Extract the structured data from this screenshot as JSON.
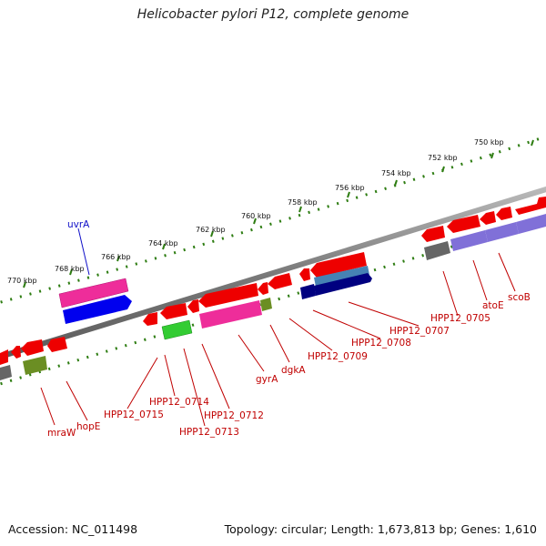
{
  "title": "Helicobacter pylori P12, complete genome",
  "accession": "Accession: NC_011498",
  "summary": "Topology: circular; Length: 1,673,813 bp; Genes: 1,610",
  "ruler_labels": [
    "750 kbp",
    "752 kbp",
    "754 kbp",
    "756 kbp",
    "758 kbp",
    "760 kbp",
    "762 kbp",
    "764 kbp",
    "766 kbp",
    "768 kbp",
    "770 kbp"
  ],
  "gene_labels": [
    "uvrA",
    "HPP12_0705",
    "atoE",
    "scoB",
    "HPP12_0707",
    "HPP12_0708",
    "HPP12_0709",
    "dgkA",
    "gyrA",
    "HPP12_0712",
    "HPP12_0713",
    "HPP12_0714",
    "HPP12_0715",
    "hopE",
    "mraW"
  ],
  "colors": {
    "backbone": "#888888",
    "ruler": "#2e7d12",
    "cds_red": "#ee0000",
    "label_red": "#c00000",
    "label_blue": "#1010c8",
    "magenta": "#ee2d9a",
    "blue": "#0000ee",
    "green": "#33cc33",
    "olive": "#6b8e23",
    "gray": "#666666",
    "purple": "#8070d8",
    "navy": "#000080",
    "steel": "#4682b4"
  }
}
